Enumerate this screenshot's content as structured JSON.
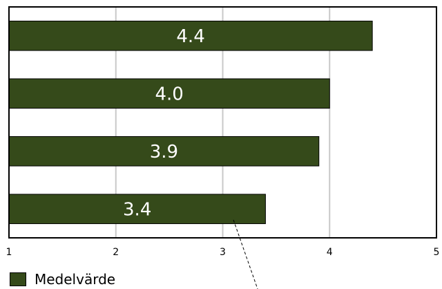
{
  "chart_data": {
    "type": "bar",
    "orientation": "horizontal",
    "values": [
      4.4,
      4.0,
      3.9,
      3.4
    ],
    "value_labels": [
      "4.4",
      "4.0",
      "3.9",
      "3.4"
    ],
    "xlim": [
      1,
      5
    ],
    "x_ticks": [
      1,
      2,
      3,
      4,
      5
    ],
    "grid": true,
    "series": [
      {
        "name": "Medelvärde",
        "color": "#354a1a"
      }
    ],
    "legend_position": "bottom-left"
  }
}
